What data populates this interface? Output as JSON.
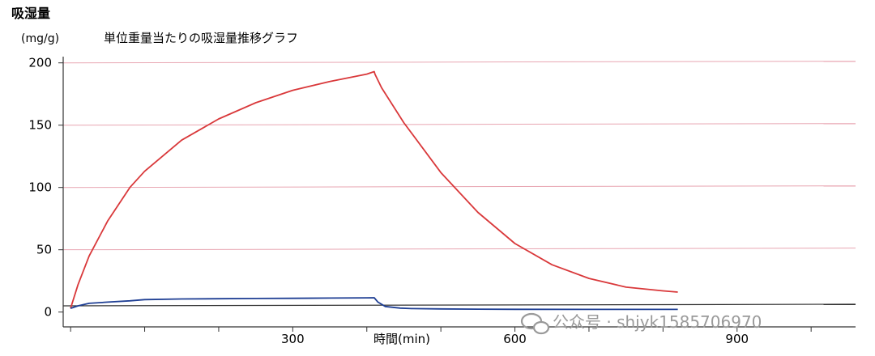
{
  "chart_data": {
    "type": "line",
    "title": "単位重量当たりの吸湿量推移グラフ",
    "ylabel": "吸湿量",
    "yunit": "(mg/g)",
    "xlabel": "時間(min)",
    "ylim": [
      -8,
      205
    ],
    "xlim": [
      -10,
      1060
    ],
    "yticks": [
      0,
      50,
      100,
      150,
      200
    ],
    "xticks": [
      300,
      600,
      900
    ],
    "grid": "horizontal",
    "series": [
      {
        "color": "#d9383a",
        "x": [
          0,
          10,
          25,
          50,
          80,
          100,
          150,
          200,
          250,
          300,
          350,
          400,
          410,
          411,
          420,
          450,
          500,
          550,
          600,
          650,
          700,
          750,
          800,
          820
        ],
        "values": [
          3,
          22,
          45,
          73,
          100,
          113,
          138,
          155,
          168,
          178,
          185,
          191,
          193,
          191,
          180,
          152,
          112,
          80,
          55,
          38,
          27,
          20,
          17,
          16
        ]
      },
      {
        "color": "#1f3f94",
        "x": [
          0,
          10,
          25,
          50,
          80,
          100,
          150,
          200,
          250,
          300,
          350,
          400,
          410,
          415,
          425,
          445,
          460,
          500,
          550,
          600,
          700,
          800,
          820
        ],
        "values": [
          3,
          5,
          7,
          8,
          9,
          10,
          10.5,
          10.7,
          10.9,
          11,
          11.2,
          11.4,
          11.5,
          8,
          4.5,
          3.2,
          2.8,
          2.5,
          2.3,
          2.2,
          2.1,
          2.1,
          2.1
        ]
      }
    ]
  },
  "watermark": {
    "text": "公众号 · shjyk1585706970",
    "icon": "wechat-icon"
  }
}
